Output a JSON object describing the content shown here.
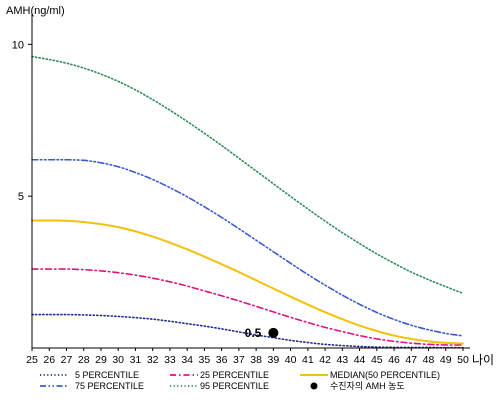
{
  "chart_data": {
    "type": "line",
    "ylabel": "AMH(ng/ml)",
    "xlabel": "나이",
    "x": [
      25,
      26,
      27,
      28,
      29,
      30,
      31,
      32,
      33,
      34,
      35,
      36,
      37,
      38,
      39,
      40,
      41,
      42,
      43,
      44,
      45,
      46,
      47,
      48,
      49,
      50
    ],
    "xlim": [
      25,
      50
    ],
    "ylim": [
      0,
      11
    ],
    "y_ticks": [
      5,
      10
    ],
    "grid": false,
    "series": [
      {
        "name": "5 PERCENTILE",
        "color": "#1f2a8c",
        "dash": "dotted",
        "values": [
          1.1,
          1.1,
          1.1,
          1.09,
          1.07,
          1.04,
          1.0,
          0.95,
          0.88,
          0.8,
          0.72,
          0.63,
          0.53,
          0.43,
          0.34,
          0.25,
          0.18,
          0.12,
          0.08,
          0.05,
          0.03,
          0.02,
          0.02,
          0.02,
          0.01,
          0.01
        ]
      },
      {
        "name": "25 PERCENTILE",
        "color": "#e0107d",
        "dash": "dashdot",
        "values": [
          2.6,
          2.6,
          2.6,
          2.58,
          2.54,
          2.48,
          2.4,
          2.3,
          2.18,
          2.04,
          1.88,
          1.72,
          1.55,
          1.37,
          1.19,
          1.01,
          0.84,
          0.68,
          0.54,
          0.41,
          0.3,
          0.22,
          0.16,
          0.12,
          0.1,
          0.1
        ]
      },
      {
        "name": "MEDIAN(50 PERCENTILE)",
        "color": "#f2c20a",
        "dash": "solid",
        "values": [
          4.2,
          4.2,
          4.19,
          4.15,
          4.08,
          3.98,
          3.84,
          3.67,
          3.47,
          3.25,
          3.01,
          2.76,
          2.5,
          2.23,
          1.96,
          1.69,
          1.43,
          1.18,
          0.95,
          0.74,
          0.56,
          0.41,
          0.3,
          0.22,
          0.17,
          0.15
        ]
      },
      {
        "name": "75 PERCENTILE",
        "color": "#3b5bc9",
        "dash": "dashdotdot",
        "values": [
          6.2,
          6.2,
          6.2,
          6.18,
          6.1,
          5.97,
          5.78,
          5.55,
          5.28,
          4.98,
          4.65,
          4.3,
          3.93,
          3.55,
          3.17,
          2.79,
          2.42,
          2.07,
          1.74,
          1.44,
          1.17,
          0.94,
          0.75,
          0.6,
          0.48,
          0.4
        ]
      },
      {
        "name": "95 PERCENTILE",
        "color": "#2e8b57",
        "dash": "dotted",
        "values": [
          9.6,
          9.5,
          9.38,
          9.22,
          9.02,
          8.78,
          8.5,
          8.18,
          7.83,
          7.46,
          7.07,
          6.67,
          6.25,
          5.83,
          5.41,
          4.99,
          4.58,
          4.18,
          3.8,
          3.44,
          3.1,
          2.79,
          2.5,
          2.25,
          2.02,
          1.8
        ]
      }
    ],
    "marker": {
      "name": "수진자의 AMH 농도",
      "x": 39,
      "y": 0.5,
      "label": "0.5",
      "color": "#000000"
    },
    "legend": {
      "placement": "bottom",
      "rows": [
        [
          "5 PERCENTILE",
          "25 PERCENTILE",
          "MEDIAN(50 PERCENTILE)"
        ],
        [
          "75 PERCENTILE",
          "95 PERCENTILE",
          "수진자의 AMH 농도"
        ]
      ]
    }
  }
}
